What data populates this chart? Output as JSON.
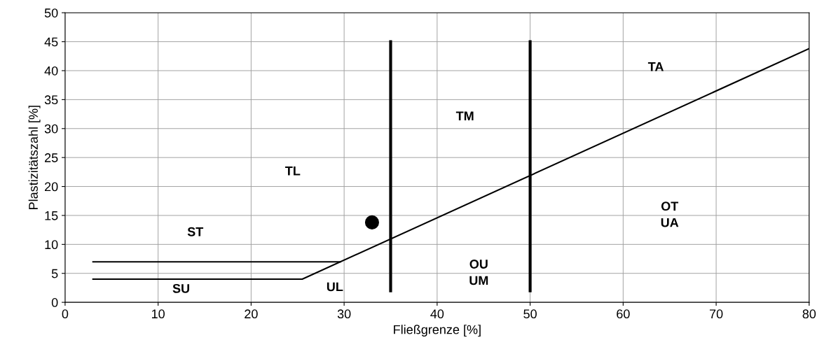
{
  "chart_data": {
    "type": "line",
    "xlabel": "Fließgrenze [%]",
    "ylabel": "Plastizitätszahl [%]",
    "xlim": [
      0,
      80
    ],
    "ylim": [
      0,
      50
    ],
    "xticks": [
      0,
      10,
      20,
      30,
      40,
      50,
      60,
      70,
      80
    ],
    "yticks": [
      0,
      5,
      10,
      15,
      20,
      25,
      30,
      35,
      40,
      45,
      50
    ],
    "grid": true,
    "legend": false,
    "marker": "none",
    "line_style": "solid",
    "series": [
      {
        "color": "#000000",
        "x": [
          3,
          25.5,
          80
        ],
        "values": [
          4,
          4,
          43.8
        ]
      },
      {
        "color": "#000000",
        "x": [
          3,
          29.6
        ],
        "values": [
          7,
          7
        ]
      },
      {
        "color": "#000000",
        "x": [
          35,
          35
        ],
        "values": [
          2,
          45
        ]
      },
      {
        "color": "#000000",
        "x": [
          50,
          50
        ],
        "values": [
          2,
          45
        ]
      },
      {
        "type": "scatter",
        "marker": "circle",
        "color": "#000000",
        "x": [
          33
        ],
        "values": [
          13.8
        ]
      }
    ],
    "annotations": [
      "TA",
      "TM",
      "TL",
      "ST",
      "SU",
      "UL",
      "OU\nUM",
      "OT\nUA"
    ]
  }
}
